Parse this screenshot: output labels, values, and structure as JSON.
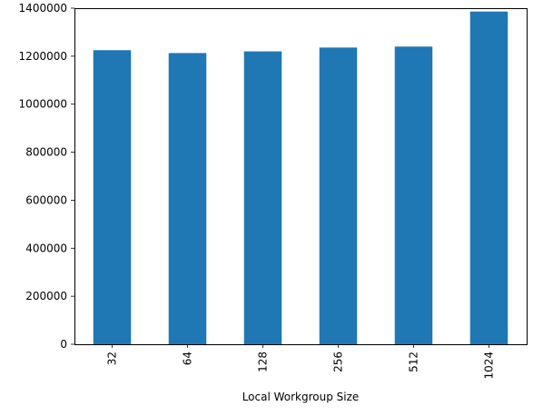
{
  "chart_data": {
    "type": "bar",
    "categories": [
      "32",
      "64",
      "128",
      "256",
      "512",
      "1024"
    ],
    "values": [
      1225000,
      1213000,
      1220000,
      1236000,
      1240000,
      1386000
    ],
    "title": "",
    "xlabel": "Local Workgroup Size",
    "ylabel": "",
    "ylim": [
      0,
      1400000
    ],
    "yticks": [
      0,
      200000,
      400000,
      600000,
      800000,
      1000000,
      1200000,
      1400000
    ],
    "ytick_labels": [
      "0",
      "200000",
      "400000",
      "600000",
      "800000",
      "1000000",
      "1200000",
      "1400000"
    ],
    "grid": false,
    "legend": "none",
    "bar_color": "#1f77b4"
  }
}
